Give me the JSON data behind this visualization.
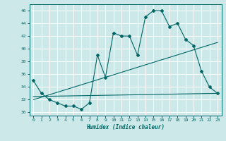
{
  "xlabel": "Humidex (Indice chaleur)",
  "background_color": "#cce8e8",
  "grid_color": "#ffffff",
  "line_color": "#006666",
  "xlim": [
    -0.5,
    23.5
  ],
  "ylim": [
    29.5,
    47
  ],
  "xticks": [
    0,
    1,
    2,
    3,
    4,
    5,
    6,
    7,
    8,
    9,
    10,
    11,
    12,
    13,
    14,
    15,
    16,
    17,
    18,
    19,
    20,
    21,
    22,
    23
  ],
  "yticks": [
    30,
    32,
    34,
    36,
    38,
    40,
    42,
    44,
    46
  ],
  "series1_x": [
    0,
    1,
    2,
    3,
    4,
    5,
    6,
    7,
    8,
    9,
    10,
    11,
    12,
    13,
    14,
    15,
    16,
    17,
    18,
    19,
    20,
    21,
    22,
    23
  ],
  "series1_y": [
    35.0,
    33.0,
    32.0,
    31.5,
    31.0,
    31.0,
    30.5,
    31.5,
    39.0,
    35.5,
    42.5,
    42.0,
    42.0,
    39.0,
    45.0,
    46.0,
    46.0,
    43.5,
    44.0,
    41.5,
    40.5,
    36.5,
    34.0,
    33.0
  ],
  "series2_x": [
    0,
    23
  ],
  "series2_y": [
    32.0,
    41.0
  ],
  "series3_x": [
    0,
    23
  ],
  "series3_y": [
    32.5,
    33.0
  ]
}
